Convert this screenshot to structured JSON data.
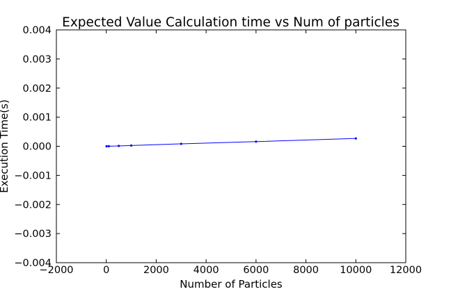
{
  "chart_data": {
    "type": "line",
    "title": "Expected Value Calculation time vs Num of particles",
    "xlabel": "Number of Particles",
    "ylabel": "Execution Time(s)",
    "xlim": [
      -2000,
      12000
    ],
    "ylim": [
      -0.004,
      0.004
    ],
    "xticks": [
      -2000,
      0,
      2000,
      4000,
      6000,
      8000,
      10000,
      12000
    ],
    "xtick_labels": [
      "−2000",
      "0",
      "2000",
      "4000",
      "6000",
      "8000",
      "10000",
      "12000"
    ],
    "yticks": [
      -0.004,
      -0.003,
      -0.002,
      -0.001,
      0.0,
      0.001,
      0.002,
      0.003,
      0.004
    ],
    "ytick_labels": [
      "−0.004",
      "−0.003",
      "−0.002",
      "−0.001",
      "0.000",
      "0.001",
      "0.002",
      "0.003",
      "0.004"
    ],
    "grid": false,
    "series": [
      {
        "color": "#0000ff",
        "marker": "dot",
        "x": [
          10,
          100,
          500,
          1000,
          3000,
          6000,
          10000
        ],
        "y": [
          5e-07,
          3e-06,
          1.3e-05,
          2.7e-05,
          8.5e-05,
          0.00016,
          0.00027
        ]
      }
    ]
  }
}
